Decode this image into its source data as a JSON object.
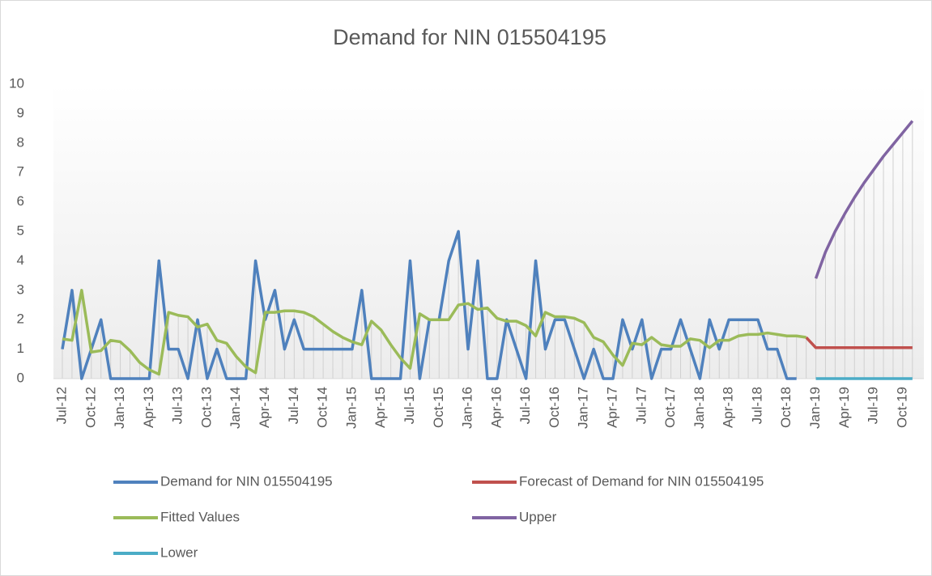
{
  "chart_data": {
    "type": "line",
    "title": "Demand for NIN 015504195",
    "categories": [
      "Jul-12",
      null,
      null,
      "Oct-12",
      null,
      null,
      "Jan-13",
      null,
      null,
      "Apr-13",
      null,
      null,
      "Jul-13",
      null,
      null,
      "Oct-13",
      null,
      null,
      "Jan-14",
      null,
      null,
      "Apr-14",
      null,
      null,
      "Jul-14",
      null,
      null,
      "Oct-14",
      null,
      null,
      "Jan-15",
      null,
      null,
      "Apr-15",
      null,
      null,
      "Jul-15",
      null,
      null,
      "Oct-15",
      null,
      null,
      "Jan-16",
      null,
      null,
      "Apr-16",
      null,
      null,
      "Jul-16",
      null,
      null,
      "Oct-16",
      null,
      null,
      "Jan-17",
      null,
      null,
      "Apr-17",
      null,
      null,
      "Jul-17",
      null,
      null,
      "Oct-17",
      null,
      null,
      "Jan-18",
      null,
      null,
      "Apr-18",
      null,
      null,
      "Jul-18",
      null,
      null,
      "Oct-18",
      null,
      null,
      "Jan-19",
      null,
      null,
      "Apr-19",
      null,
      null,
      "Jul-19",
      null,
      null,
      "Oct-19",
      null
    ],
    "series": [
      {
        "name": "Demand for NIN 015504195",
        "color": "#4f81bd",
        "values": [
          1,
          3,
          0,
          1,
          2,
          0,
          0,
          0,
          0,
          0,
          4,
          1,
          1,
          0,
          2,
          0,
          1,
          0,
          0,
          0,
          4,
          2,
          3,
          1,
          2,
          1,
          1,
          1,
          1,
          1,
          1,
          3,
          0,
          0,
          0,
          0,
          4,
          0,
          2,
          2,
          4,
          5,
          1,
          4,
          0,
          0,
          2,
          1,
          0,
          4,
          1,
          2,
          2,
          1,
          0,
          1,
          0,
          0,
          2,
          1,
          2,
          0,
          1,
          1,
          2,
          1,
          0,
          2,
          1,
          2,
          2,
          2,
          2,
          1,
          1,
          0,
          0,
          null,
          null,
          null,
          null,
          null,
          null,
          null,
          null,
          null,
          null,
          null,
          null
        ]
      },
      {
        "name": "Forecast of Demand for NIN 015504195",
        "color": "#c0504d",
        "values": [
          null,
          null,
          null,
          null,
          null,
          null,
          null,
          null,
          null,
          null,
          null,
          null,
          null,
          null,
          null,
          null,
          null,
          null,
          null,
          null,
          null,
          null,
          null,
          null,
          null,
          null,
          null,
          null,
          null,
          null,
          null,
          null,
          null,
          null,
          null,
          null,
          null,
          null,
          null,
          null,
          null,
          null,
          null,
          null,
          null,
          null,
          null,
          null,
          null,
          null,
          null,
          null,
          null,
          null,
          null,
          null,
          null,
          null,
          null,
          null,
          null,
          null,
          null,
          null,
          null,
          null,
          null,
          null,
          null,
          null,
          null,
          null,
          null,
          null,
          null,
          null,
          null,
          1.4,
          1.05,
          1.05,
          1.05,
          1.05,
          1.05,
          1.05,
          1.05,
          1.05,
          1.05,
          1.05,
          1.05
        ]
      },
      {
        "name": "Fitted Values",
        "color": "#9bbb59",
        "values": [
          1.35,
          1.3,
          3.0,
          0.9,
          0.95,
          1.3,
          1.25,
          0.95,
          0.55,
          0.3,
          0.15,
          2.25,
          2.15,
          2.1,
          1.75,
          1.85,
          1.3,
          1.2,
          0.75,
          0.4,
          0.2,
          2.25,
          2.25,
          2.3,
          2.3,
          2.25,
          2.1,
          1.85,
          1.6,
          1.4,
          1.25,
          1.15,
          1.95,
          1.65,
          1.15,
          0.7,
          0.35,
          2.2,
          2.0,
          2.0,
          2.0,
          2.5,
          2.55,
          2.35,
          2.4,
          2.05,
          1.95,
          1.95,
          1.8,
          1.45,
          2.25,
          2.1,
          2.1,
          2.05,
          1.9,
          1.4,
          1.25,
          0.8,
          0.45,
          1.2,
          1.15,
          1.4,
          1.15,
          1.1,
          1.1,
          1.35,
          1.3,
          1.05,
          1.3,
          1.3,
          1.45,
          1.5,
          1.5,
          1.55,
          1.5,
          1.45,
          1.45,
          1.4,
          null,
          null,
          null,
          null,
          null,
          null,
          null,
          null,
          null,
          null,
          null
        ]
      },
      {
        "name": "Upper",
        "color": "#8064a2",
        "values": [
          null,
          null,
          null,
          null,
          null,
          null,
          null,
          null,
          null,
          null,
          null,
          null,
          null,
          null,
          null,
          null,
          null,
          null,
          null,
          null,
          null,
          null,
          null,
          null,
          null,
          null,
          null,
          null,
          null,
          null,
          null,
          null,
          null,
          null,
          null,
          null,
          null,
          null,
          null,
          null,
          null,
          null,
          null,
          null,
          null,
          null,
          null,
          null,
          null,
          null,
          null,
          null,
          null,
          null,
          null,
          null,
          null,
          null,
          null,
          null,
          null,
          null,
          null,
          null,
          null,
          null,
          null,
          null,
          null,
          null,
          null,
          null,
          null,
          null,
          null,
          null,
          null,
          null,
          3.4,
          4.3,
          5.0,
          5.6,
          6.15,
          6.65,
          7.1,
          7.55,
          7.95,
          8.35,
          8.75
        ]
      },
      {
        "name": "Lower",
        "color": "#4bacc6",
        "values": [
          null,
          null,
          null,
          null,
          null,
          null,
          null,
          null,
          null,
          null,
          null,
          null,
          null,
          null,
          null,
          null,
          null,
          null,
          null,
          null,
          null,
          null,
          null,
          null,
          null,
          null,
          null,
          null,
          null,
          null,
          null,
          null,
          null,
          null,
          null,
          null,
          null,
          null,
          null,
          null,
          null,
          null,
          null,
          null,
          null,
          null,
          null,
          null,
          null,
          null,
          null,
          null,
          null,
          null,
          null,
          null,
          null,
          null,
          null,
          null,
          null,
          null,
          null,
          null,
          null,
          null,
          null,
          null,
          null,
          null,
          null,
          null,
          null,
          null,
          null,
          null,
          null,
          null,
          0,
          0,
          0,
          0,
          0,
          0,
          0,
          0,
          0,
          0,
          0
        ]
      }
    ],
    "ylim": [
      0,
      10
    ],
    "yticks": [
      0,
      1,
      2,
      3,
      4,
      5,
      6,
      7,
      8,
      9,
      10
    ]
  }
}
